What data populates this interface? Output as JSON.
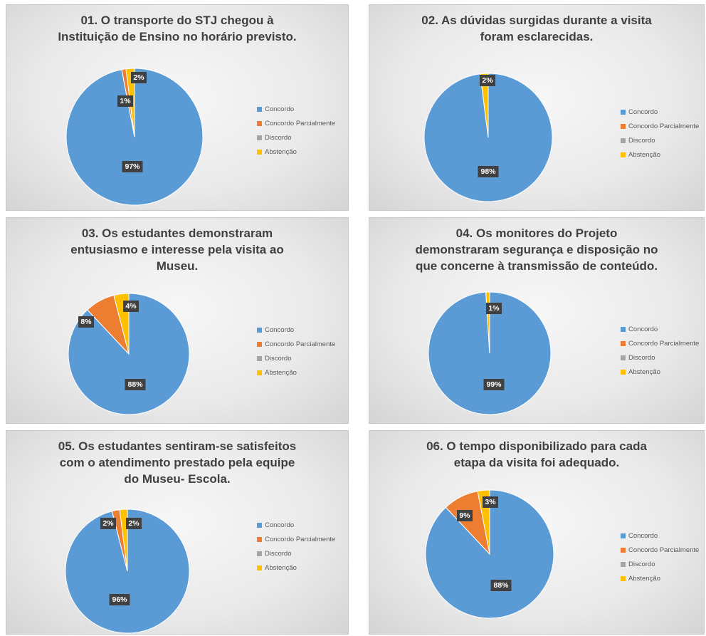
{
  "legend": [
    "Concordo",
    "Concordo Parcialmente",
    "Discordo",
    "Abstenção"
  ],
  "colors": [
    "#5b9bd5",
    "#ed7d31",
    "#a5a5a5",
    "#ffc000"
  ],
  "chart_data": [
    {
      "type": "pie",
      "title_lines": [
        "01. O transporte do STJ chegou à",
        "Instituição de Ensino no horário previsto."
      ],
      "categories": [
        "Concordo",
        "Concordo Parcialmente",
        "Discordo",
        "Abstenção"
      ],
      "values": [
        97,
        1,
        0,
        2
      ],
      "labels": [
        "97%",
        "1%",
        "",
        "2%"
      ]
    },
    {
      "type": "pie",
      "title_lines": [
        "02. As dúvidas surgidas durante a visita",
        "foram esclarecidas."
      ],
      "categories": [
        "Concordo",
        "Concordo Parcialmente",
        "Discordo",
        "Abstenção"
      ],
      "values": [
        98,
        0,
        0,
        2
      ],
      "labels": [
        "98%",
        "",
        "",
        "2%"
      ]
    },
    {
      "type": "pie",
      "title_lines": [
        "03. Os estudantes demonstraram",
        "entusiasmo e interesse pela visita ao",
        "Museu."
      ],
      "categories": [
        "Concordo",
        "Concordo Parcialmente",
        "Discordo",
        "Abstenção"
      ],
      "values": [
        88,
        8,
        0,
        4
      ],
      "labels": [
        "88%",
        "8%",
        "",
        "4%"
      ]
    },
    {
      "type": "pie",
      "title_lines": [
        "04. Os monitores do Projeto",
        "demonstraram segurança e disposição no",
        "que concerne à transmissão de conteúdo."
      ],
      "categories": [
        "Concordo",
        "Concordo Parcialmente",
        "Discordo",
        "Abstenção"
      ],
      "values": [
        99,
        0,
        0,
        1
      ],
      "labels": [
        "99%",
        "",
        "",
        "1%"
      ]
    },
    {
      "type": "pie",
      "title_lines": [
        "05. Os estudantes sentiram-se satisfeitos",
        "com o atendimento prestado pela equipe",
        "do Museu- Escola."
      ],
      "categories": [
        "Concordo",
        "Concordo Parcialmente",
        "Discordo",
        "Abstenção"
      ],
      "values": [
        96,
        2,
        0,
        2
      ],
      "labels": [
        "96%",
        "2%",
        "",
        "2%"
      ]
    },
    {
      "type": "pie",
      "title_lines": [
        "06. O tempo disponibilizado para cada",
        "etapa da visita foi adequado."
      ],
      "categories": [
        "Concordo",
        "Concordo Parcialmente",
        "Discordo",
        "Abstenção"
      ],
      "values": [
        88,
        9,
        0,
        3
      ],
      "labels": [
        "88%",
        "9%",
        "",
        "3%"
      ]
    }
  ]
}
